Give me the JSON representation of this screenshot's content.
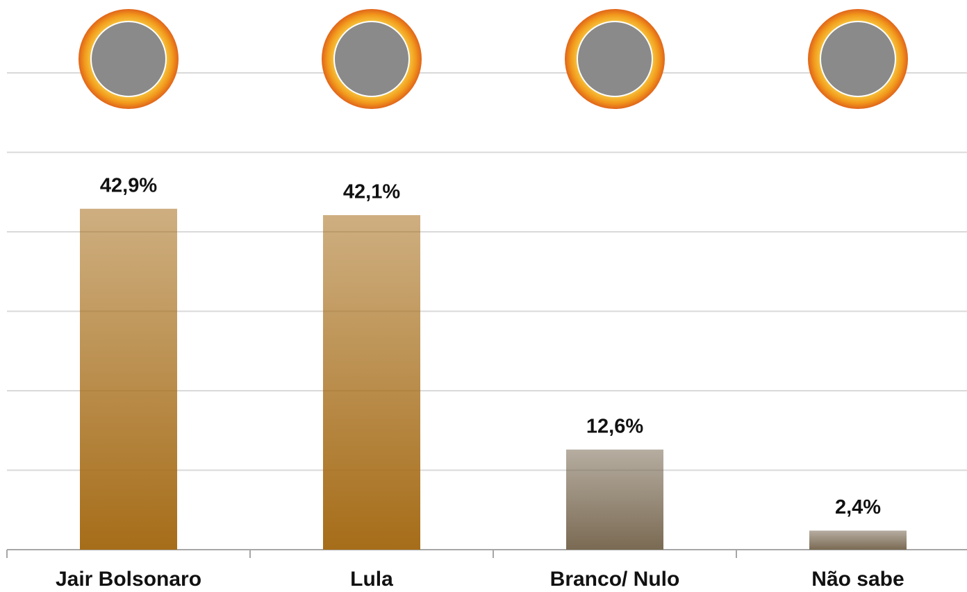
{
  "chart_data": {
    "type": "bar",
    "categories": [
      "Jair Bolsonaro",
      "Lula",
      "Branco/ Nulo",
      "Não sabe"
    ],
    "values": [
      42.9,
      42.1,
      12.6,
      2.4
    ],
    "value_labels": [
      "42,9%",
      "42,1%",
      "12,6%",
      "2,4%"
    ],
    "colors": [
      "#a66d19",
      "#a66d19",
      "#7a6a53",
      "#7a6a53"
    ],
    "ylim": [
      0,
      60
    ],
    "yticks": [
      0,
      10,
      20,
      30,
      40,
      50,
      60
    ],
    "grid": true
  }
}
